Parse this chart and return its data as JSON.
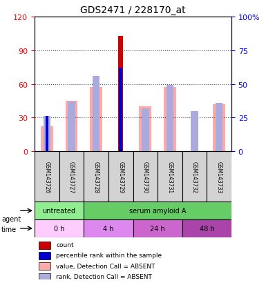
{
  "title": "GDS2471 / 228170_at",
  "samples": [
    "GSM143726",
    "GSM143727",
    "GSM143728",
    "GSM143729",
    "GSM143730",
    "GSM143731",
    "GSM143732",
    "GSM143733"
  ],
  "count_values": [
    0,
    0,
    0,
    103,
    0,
    0,
    0,
    0
  ],
  "rank_values": [
    26,
    0,
    0,
    62,
    0,
    0,
    0,
    0
  ],
  "value_absent": [
    22,
    45,
    57,
    0,
    40,
    57,
    0,
    42
  ],
  "rank_absent": [
    26,
    37,
    56,
    0,
    32,
    49,
    30,
    36
  ],
  "ylim_left": [
    0,
    120
  ],
  "ylim_right": [
    0,
    100
  ],
  "yticks_left": [
    0,
    30,
    60,
    90,
    120
  ],
  "yticks_right": [
    0,
    25,
    50,
    75,
    100
  ],
  "right_labels": [
    "0",
    "25",
    "50",
    "75",
    "100%"
  ],
  "agent_labels": [
    {
      "label": "untreated",
      "start": 0,
      "end": 2,
      "color": "#90ee90"
    },
    {
      "label": "serum amyloid A",
      "start": 2,
      "end": 8,
      "color": "#66cc66"
    }
  ],
  "time_colors": [
    "#ffccff",
    "#dd88ee",
    "#cc66cc",
    "#aa44aa"
  ],
  "time_labels": [
    {
      "label": "0 h",
      "start": 0,
      "end": 2
    },
    {
      "label": "4 h",
      "start": 2,
      "end": 4
    },
    {
      "label": "24 h",
      "start": 4,
      "end": 6
    },
    {
      "label": "48 h",
      "start": 6,
      "end": 8
    }
  ],
  "color_count": "#cc0000",
  "color_rank": "#0000cc",
  "color_value_absent": "#ffaaaa",
  "color_rank_absent": "#aaaadd",
  "bar_width": 0.5,
  "legend_items": [
    {
      "color": "#cc0000",
      "label": "count"
    },
    {
      "color": "#0000cc",
      "label": "percentile rank within the sample"
    },
    {
      "color": "#ffaaaa",
      "label": "value, Detection Call = ABSENT"
    },
    {
      "color": "#aaaadd",
      "label": "rank, Detection Call = ABSENT"
    }
  ]
}
